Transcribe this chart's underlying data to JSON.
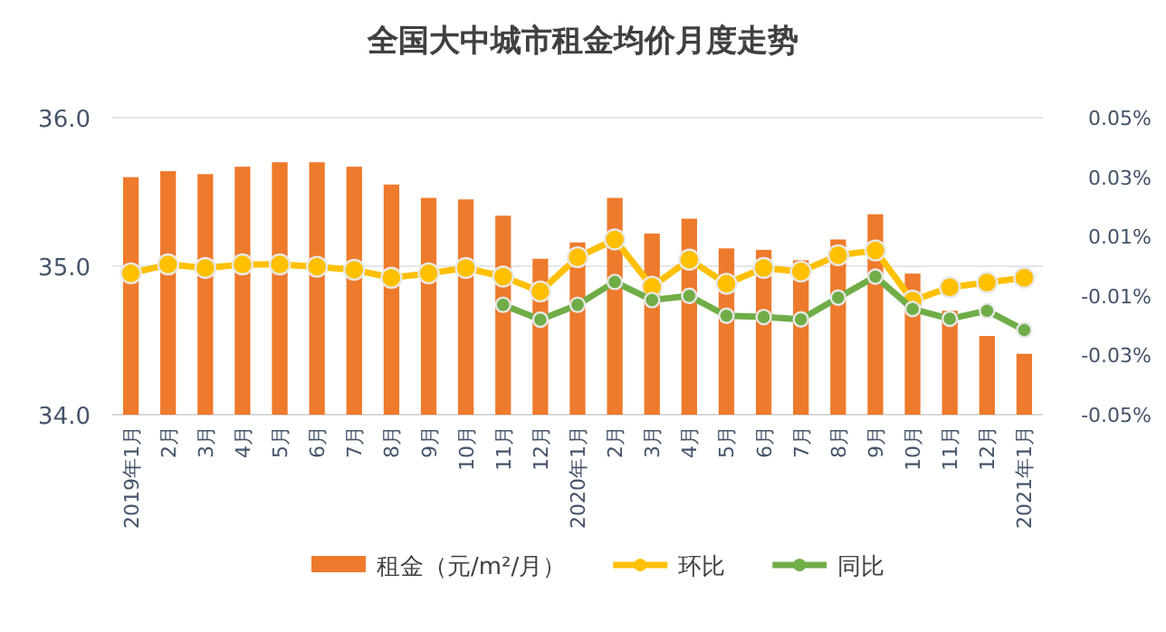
{
  "chart_data": {
    "type": "bar",
    "title": "全国大中城市租金均价月度走势",
    "categories": [
      "2019年1月",
      "2月",
      "3月",
      "4月",
      "5月",
      "6月",
      "7月",
      "8月",
      "9月",
      "10月",
      "11月",
      "12月",
      "2020年1月",
      "2月",
      "3月",
      "4月",
      "5月",
      "6月",
      "7月",
      "8月",
      "9月",
      "10月",
      "11月",
      "12月",
      "2021年1月"
    ],
    "series": [
      {
        "name": "租金（元/m²/月）",
        "color": "#ee7a2c",
        "values": [
          35.6,
          35.64,
          35.62,
          35.67,
          35.7,
          35.7,
          35.67,
          35.55,
          35.46,
          35.45,
          35.34,
          35.05,
          35.16,
          35.46,
          35.22,
          35.32,
          35.12,
          35.11,
          35.04,
          35.18,
          35.35,
          34.95,
          34.7,
          34.53,
          34.41
        ]
      },
      {
        "name": "环比",
        "type": "line",
        "axis": "y2",
        "color": "#ffc000",
        "values": [
          -0.0024,
          0.0006,
          -0.0006,
          0.0006,
          0.0006,
          -0.0002,
          -0.0012,
          -0.0039,
          -0.0024,
          -0.0006,
          -0.0035,
          -0.0085,
          0.003,
          0.009,
          -0.0069,
          0.0022,
          -0.0059,
          -0.0006,
          -0.0018,
          0.0037,
          0.0053,
          -0.0116,
          -0.0071,
          -0.0055,
          -0.0039
        ]
      },
      {
        "name": "同比",
        "type": "line",
        "axis": "y2",
        "color": "#70ad47",
        "values": [
          null,
          null,
          null,
          null,
          null,
          null,
          null,
          null,
          null,
          null,
          -0.013,
          -0.018,
          -0.013,
          -0.0053,
          -0.0114,
          -0.01,
          -0.0167,
          -0.0171,
          -0.0179,
          -0.0106,
          -0.0035,
          -0.0144,
          -0.0177,
          -0.015,
          -0.0215
        ]
      }
    ],
    "ylim": [
      34,
      36
    ],
    "yticks": [
      {
        "value": 34,
        "label": "34.0"
      },
      {
        "value": 35,
        "label": "35.0"
      },
      {
        "value": 36,
        "label": "36.0"
      }
    ],
    "y2lim": [
      -0.05,
      0.05
    ],
    "y2ticks": [
      {
        "value": -0.05,
        "label": "-0.05%"
      },
      {
        "value": -0.03,
        "label": "-0.03%"
      },
      {
        "value": -0.01,
        "label": "-0.01%"
      },
      {
        "value": 0.01,
        "label": "0.01%"
      },
      {
        "value": 0.03,
        "label": "0.03%"
      },
      {
        "value": 0.05,
        "label": "0.05%"
      }
    ],
    "grid": "y",
    "legend": "bottom",
    "marker": "circle"
  }
}
